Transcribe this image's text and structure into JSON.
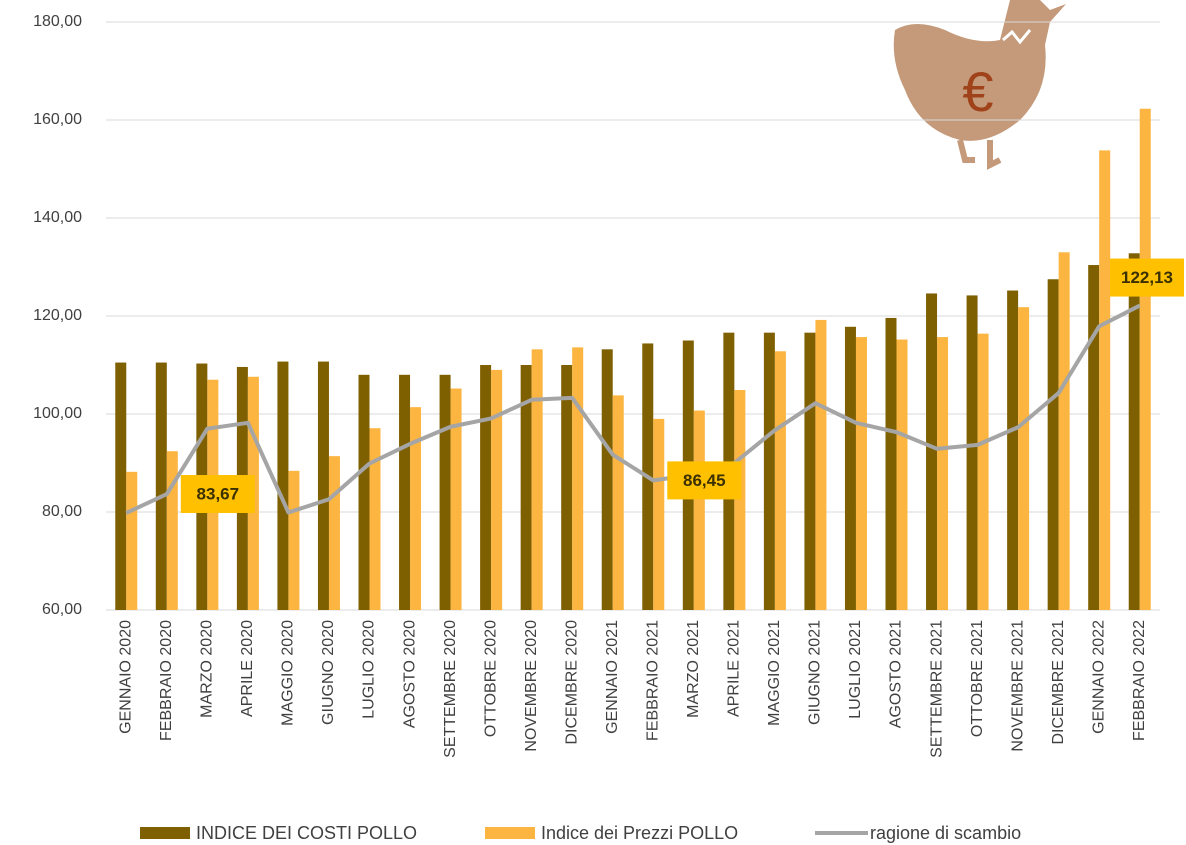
{
  "chart_data": {
    "type": "bar_line",
    "categories": [
      "GENNAIO 2020",
      "FEBBRAIO 2020",
      "MARZO 2020",
      "APRILE 2020",
      "MAGGIO 2020",
      "GIUGNO 2020",
      "LUGLIO 2020",
      "AGOSTO 2020",
      "SETTEMBRE 2020",
      "OTTOBRE 2020",
      "NOVEMBRE 2020",
      "DICEMBRE 2020",
      "GENNAIO 2021",
      "FEBBRAIO 2021",
      "MARZO 2021",
      "APRILE 2021",
      "MAGGIO 2021",
      "GIUGNO 2021",
      "LUGLIO 2021",
      "AGOSTO 2021",
      "SETTEMBRE 2021",
      "OTTOBRE 2021",
      "NOVEMBRE 2021",
      "DICEMBRE 2021",
      "GENNAIO 2022",
      "FEBBRAIO 2022"
    ],
    "series": [
      {
        "name": "INDICE DEI COSTI POLLO",
        "type": "bar",
        "color": "#7f6000",
        "values": [
          110.5,
          110.5,
          110.3,
          109.6,
          110.7,
          110.7,
          108,
          108,
          108,
          110,
          110,
          110,
          113.2,
          114.4,
          115,
          116.6,
          116.6,
          116.6,
          117.8,
          119.6,
          124.6,
          124.2,
          125.2,
          127.5,
          130.4,
          132.8
        ]
      },
      {
        "name": "Indice dei Prezzi POLLO",
        "type": "bar",
        "color": "#fbb540",
        "values": [
          88.2,
          92.4,
          107,
          107.6,
          88.4,
          91.4,
          97.1,
          101.4,
          105.2,
          109,
          113.2,
          113.6,
          103.8,
          99,
          100.7,
          104.9,
          112.8,
          119.2,
          115.7,
          115.2,
          115.7,
          116.4,
          121.8,
          133,
          153.8,
          162.3
        ]
      },
      {
        "name": "ragione di scambio",
        "type": "line",
        "color": "#a5a5a5",
        "values": [
          79.8,
          83.67,
          97,
          98.2,
          79.9,
          82.6,
          89.9,
          93.9,
          97.4,
          99.1,
          102.9,
          103.3,
          91.7,
          86.45,
          87.6,
          90,
          96.7,
          102.2,
          98.2,
          96.3,
          92.9,
          93.7,
          97.3,
          104.3,
          117.9,
          122.13
        ],
        "value_labels": [
          null,
          "83,67",
          null,
          null,
          null,
          null,
          null,
          null,
          null,
          null,
          null,
          null,
          null,
          "86,45",
          null,
          null,
          null,
          null,
          null,
          null,
          null,
          null,
          null,
          null,
          null,
          "122,13"
        ],
        "label_color": "#ffc000"
      }
    ],
    "ylim": [
      60,
      180
    ],
    "yticks": [
      {
        "value": 60,
        "label": "60,00"
      },
      {
        "value": 80,
        "label": "80,00"
      },
      {
        "value": 100,
        "label": "100,00"
      },
      {
        "value": 120,
        "label": "120,00"
      },
      {
        "value": 140,
        "label": "140,00"
      },
      {
        "value": 160,
        "label": "160,00"
      },
      {
        "value": 180,
        "label": "180,00"
      }
    ],
    "grid": true,
    "legend": "bottom",
    "icon_label": "€"
  }
}
